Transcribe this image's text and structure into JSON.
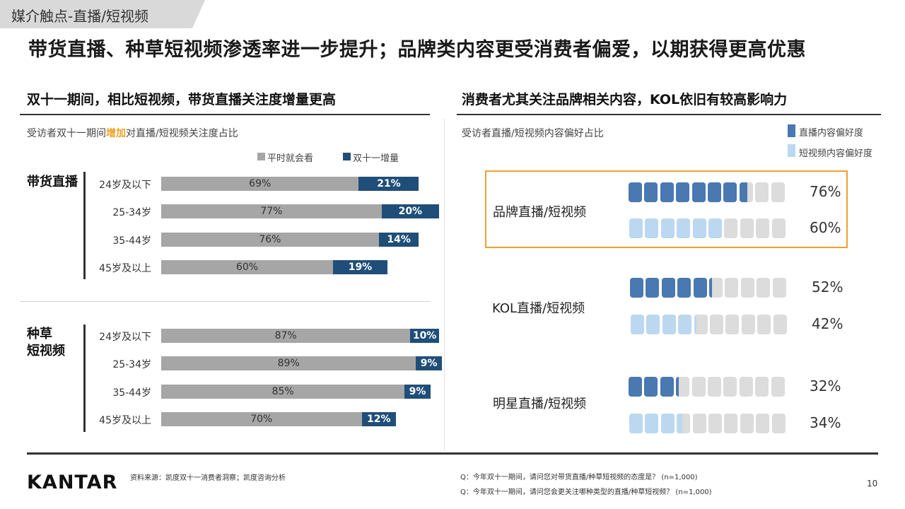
{
  "tag": "媒介触点-直播/短视频",
  "headline": "带货直播、种草短视频渗透率进一步提升；品牌类内容更受消费者偏爱，以期获得更高优惠",
  "left": {
    "title": "双十一期间，相比短视频，带货直播关注度增量更高",
    "subtitle_pre": "受访者双十一期间",
    "subtitle_hl": "增加",
    "subtitle_post": "对直播/短视频关注度占比",
    "legend_normal": "平时就会看",
    "legend_increase": "双十一增量",
    "groups": [
      "带货直播",
      "种草\n短视频"
    ]
  },
  "right": {
    "title": "消费者尤其关注品牌相关内容，KOL依旧有较高影响力",
    "subtitle": "受访者直播/短视频内容偏好占比",
    "legend_live": "直播内容偏好度",
    "legend_short": "短视频内容偏好度"
  },
  "chart_data": [
    {
      "type": "bar",
      "orientation": "horizontal",
      "stacked": true,
      "title": "受访者双十一期间增加对直播/短视频关注度占比",
      "groups": [
        {
          "name": "带货直播",
          "categories": [
            "24岁及以下",
            "25-34岁",
            "35-44岁",
            "45岁及以上"
          ],
          "series": [
            {
              "name": "平时就会看",
              "values": [
                69,
                77,
                76,
                60
              ]
            },
            {
              "name": "双十一增量",
              "values": [
                21,
                20,
                14,
                19
              ]
            }
          ]
        },
        {
          "name": "种草短视频",
          "categories": [
            "24岁及以下",
            "25-34岁",
            "35-44岁",
            "45岁及以上"
          ],
          "series": [
            {
              "name": "平时就会看",
              "values": [
                87,
                89,
                85,
                70
              ]
            },
            {
              "name": "双十一增量",
              "values": [
                10,
                9,
                9,
                12
              ]
            }
          ]
        }
      ],
      "unit": "%"
    },
    {
      "type": "bar",
      "style": "pictogram",
      "title": "受访者直播/短视频内容偏好占比",
      "categories": [
        "品牌直播/短视频",
        "KOL直播/短视频",
        "明星直播/短视频"
      ],
      "series": [
        {
          "name": "直播内容偏好度",
          "values": [
            76,
            52,
            32
          ],
          "color": "#4a78b0"
        },
        {
          "name": "短视频内容偏好度",
          "values": [
            60,
            42,
            34
          ],
          "color": "#bcd8f0"
        }
      ],
      "highlighted_category": "品牌直播/短视频",
      "unit": "%"
    }
  ],
  "footer": {
    "logo": "KANTAR",
    "source": "资料来源：凯度双十一消费者洞察；凯度咨询分析",
    "q1": "Q：今年双十一期间，请问您对带货直播/种草短视频的态度是？ (n=1,000)",
    "q2": "Q：今年双十一期间，请问您会更关注哪种类型的直播/种草短视频？ (n=1,000)",
    "page": "10"
  },
  "colors": {
    "grey": "#a6a6a6",
    "navy": "#1f4e79",
    "live": "#4a78b0",
    "short": "#bcd8f0",
    "empty": "#dcdcdc",
    "highlight": "#f0a030",
    "orange_text": "#f0a020"
  }
}
